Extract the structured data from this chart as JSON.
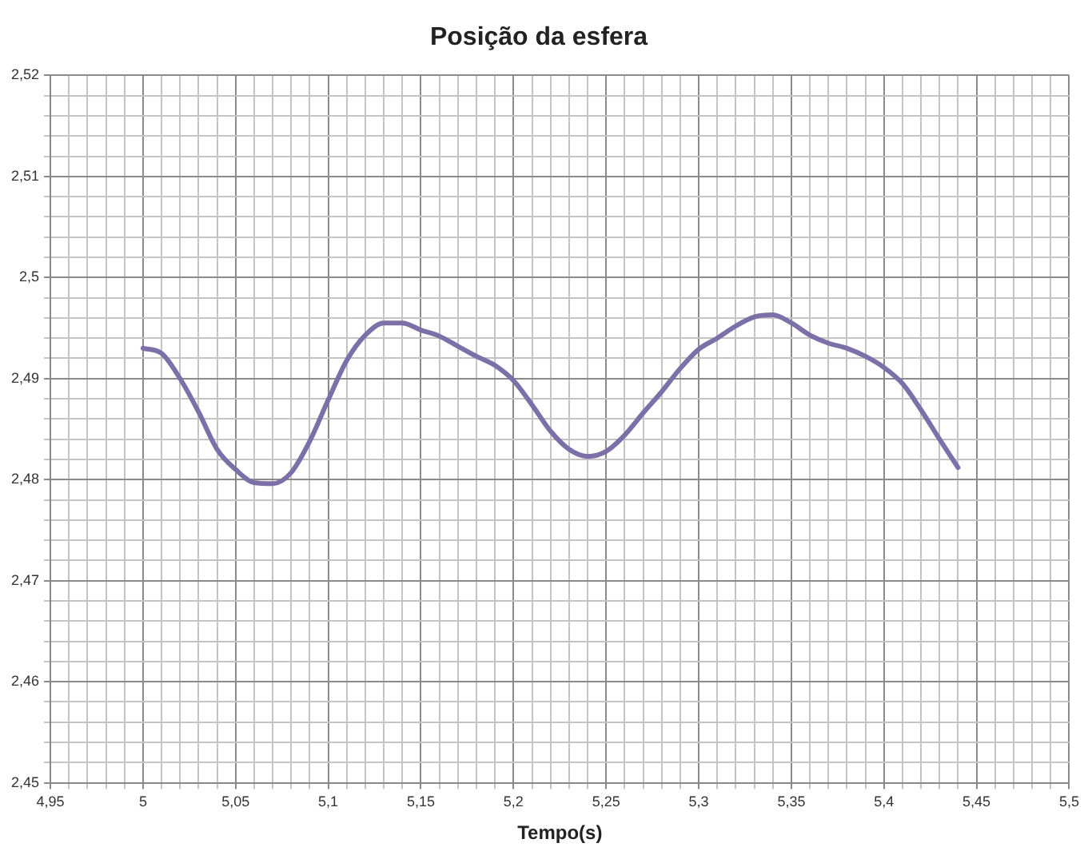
{
  "chart_data": {
    "type": "line",
    "title": "Posição da esfera",
    "xlabel": "Tempo(s)",
    "grid": true,
    "marker": "none",
    "line_style": "solid",
    "legend": false,
    "xlim": [
      4.95,
      5.5
    ],
    "ylim": [
      2.45,
      2.52
    ],
    "xticks": [
      {
        "value": 4.95,
        "label": "4,95"
      },
      {
        "value": 4.96,
        "label": null
      },
      {
        "value": 4.97,
        "label": null
      },
      {
        "value": 4.98,
        "label": null
      },
      {
        "value": 4.99,
        "label": null
      },
      {
        "value": 5,
        "label": "5"
      },
      {
        "value": 5.01,
        "label": null
      },
      {
        "value": 5.02,
        "label": null
      },
      {
        "value": 5.03,
        "label": null
      },
      {
        "value": 5.04,
        "label": null
      },
      {
        "value": 5.05,
        "label": "5,05"
      },
      {
        "value": 5.06,
        "label": null
      },
      {
        "value": 5.07,
        "label": null
      },
      {
        "value": 5.08,
        "label": null
      },
      {
        "value": 5.09,
        "label": null
      },
      {
        "value": 5.1,
        "label": "5,1"
      },
      {
        "value": 5.11,
        "label": null
      },
      {
        "value": 5.12,
        "label": null
      },
      {
        "value": 5.13,
        "label": null
      },
      {
        "value": 5.14,
        "label": null
      },
      {
        "value": 5.15,
        "label": "5,15"
      },
      {
        "value": 5.16,
        "label": null
      },
      {
        "value": 5.17,
        "label": null
      },
      {
        "value": 5.18,
        "label": null
      },
      {
        "value": 5.19,
        "label": null
      },
      {
        "value": 5.2,
        "label": "5,2"
      },
      {
        "value": 5.21,
        "label": null
      },
      {
        "value": 5.22,
        "label": null
      },
      {
        "value": 5.23,
        "label": null
      },
      {
        "value": 5.24,
        "label": null
      },
      {
        "value": 5.25,
        "label": "5,25"
      },
      {
        "value": 5.26,
        "label": null
      },
      {
        "value": 5.27,
        "label": null
      },
      {
        "value": 5.28,
        "label": null
      },
      {
        "value": 5.29,
        "label": null
      },
      {
        "value": 5.3,
        "label": "5,3"
      },
      {
        "value": 5.31,
        "label": null
      },
      {
        "value": 5.32,
        "label": null
      },
      {
        "value": 5.33,
        "label": null
      },
      {
        "value": 5.34,
        "label": null
      },
      {
        "value": 5.35,
        "label": "5,35"
      },
      {
        "value": 5.36,
        "label": null
      },
      {
        "value": 5.37,
        "label": null
      },
      {
        "value": 5.38,
        "label": null
      },
      {
        "value": 5.39,
        "label": null
      },
      {
        "value": 5.4,
        "label": "5,4"
      },
      {
        "value": 5.41,
        "label": null
      },
      {
        "value": 5.42,
        "label": null
      },
      {
        "value": 5.43,
        "label": null
      },
      {
        "value": 5.44,
        "label": null
      },
      {
        "value": 5.45,
        "label": "5,45"
      },
      {
        "value": 5.46,
        "label": null
      },
      {
        "value": 5.47,
        "label": null
      },
      {
        "value": 5.48,
        "label": null
      },
      {
        "value": 5.49,
        "label": null
      },
      {
        "value": 5.5,
        "label": "5,5"
      }
    ],
    "yticks": [
      {
        "value": 2.45,
        "label": "2,45"
      },
      {
        "value": 2.452,
        "label": null
      },
      {
        "value": 2.454,
        "label": null
      },
      {
        "value": 2.456,
        "label": null
      },
      {
        "value": 2.458,
        "label": null
      },
      {
        "value": 2.46,
        "label": "2,46"
      },
      {
        "value": 2.462,
        "label": null
      },
      {
        "value": 2.464,
        "label": null
      },
      {
        "value": 2.466,
        "label": null
      },
      {
        "value": 2.468,
        "label": null
      },
      {
        "value": 2.47,
        "label": "2,47"
      },
      {
        "value": 2.472,
        "label": null
      },
      {
        "value": 2.474,
        "label": null
      },
      {
        "value": 2.476,
        "label": null
      },
      {
        "value": 2.478,
        "label": null
      },
      {
        "value": 2.48,
        "label": "2,48"
      },
      {
        "value": 2.482,
        "label": null
      },
      {
        "value": 2.484,
        "label": null
      },
      {
        "value": 2.486,
        "label": null
      },
      {
        "value": 2.488,
        "label": null
      },
      {
        "value": 2.49,
        "label": "2,49"
      },
      {
        "value": 2.492,
        "label": null
      },
      {
        "value": 2.494,
        "label": null
      },
      {
        "value": 2.496,
        "label": null
      },
      {
        "value": 2.498,
        "label": null
      },
      {
        "value": 2.5,
        "label": "2,5"
      },
      {
        "value": 2.502,
        "label": null
      },
      {
        "value": 2.504,
        "label": null
      },
      {
        "value": 2.506,
        "label": null
      },
      {
        "value": 2.508,
        "label": null
      },
      {
        "value": 2.51,
        "label": "2,51"
      },
      {
        "value": 2.512,
        "label": null
      },
      {
        "value": 2.514,
        "label": null
      },
      {
        "value": 2.516,
        "label": null
      },
      {
        "value": 2.518,
        "label": null
      },
      {
        "value": 2.52,
        "label": "2,52"
      }
    ],
    "x": [
      5,
      5.01,
      5.02,
      5.03,
      5.04,
      5.05,
      5.06,
      5.07,
      5.08,
      5.09,
      5.1,
      5.11,
      5.12,
      5.13,
      5.14,
      5.15,
      5.16,
      5.17,
      5.18,
      5.19,
      5.2,
      5.21,
      5.22,
      5.23,
      5.24,
      5.25,
      5.26,
      5.27,
      5.28,
      5.29,
      5.3,
      5.31,
      5.32,
      5.33,
      5.34,
      5.35,
      5.36,
      5.37,
      5.38,
      5.39,
      5.4,
      5.41,
      5.42,
      5.43,
      5.44
    ],
    "series": [
      {
        "color": "#7b70a8",
        "values": [
          2.493,
          2.4925,
          2.49,
          2.4867,
          2.483,
          2.481,
          2.4797,
          2.4796,
          2.4807,
          2.4838,
          2.4879,
          2.4918,
          2.4943,
          2.4955,
          2.4955,
          2.4948,
          2.4942,
          2.4932,
          2.4922,
          2.4913,
          2.4898,
          2.4874,
          2.4848,
          2.483,
          2.4823,
          2.4828,
          2.4844,
          2.4866,
          2.4887,
          2.491,
          2.4929,
          2.494,
          2.4952,
          2.4961,
          2.4963,
          2.4955,
          2.4943,
          2.4935,
          2.493,
          2.4922,
          2.4911,
          2.4895,
          2.4869,
          2.484,
          2.4812
        ]
      }
    ]
  }
}
